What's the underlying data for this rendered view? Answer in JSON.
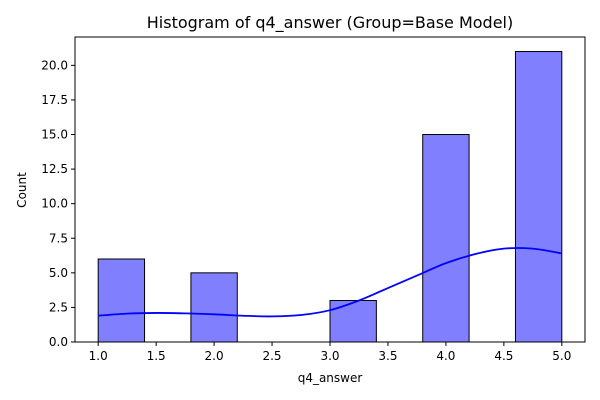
{
  "chart_data": {
    "type": "bar",
    "title": "Histogram of q4_answer (Group=Base Model)",
    "xlabel": "q4_answer",
    "ylabel": "Count",
    "xlim": [
      0.8,
      5.2
    ],
    "ylim": [
      0,
      22.05
    ],
    "grid": false,
    "legend": "none",
    "bar_color": "#8080ff",
    "bar_edge_color": "#000000",
    "kde_color": "#0000ff",
    "x_ticks": [
      1.0,
      1.5,
      2.0,
      2.5,
      3.0,
      3.5,
      4.0,
      4.5,
      5.0
    ],
    "x_tick_labels": [
      "1.0",
      "1.5",
      "2.0",
      "2.5",
      "3.0",
      "3.5",
      "4.0",
      "4.5",
      "5.0"
    ],
    "y_ticks": [
      0.0,
      2.5,
      5.0,
      7.5,
      10.0,
      12.5,
      15.0,
      17.5,
      20.0
    ],
    "y_tick_labels": [
      "0.0",
      "2.5",
      "5.0",
      "7.5",
      "10.0",
      "12.5",
      "15.0",
      "17.5",
      "20.0"
    ],
    "bins": [
      {
        "x0": 1.0,
        "x1": 1.4,
        "count": 6
      },
      {
        "x0": 1.4,
        "x1": 1.8,
        "count": 0
      },
      {
        "x0": 1.8,
        "x1": 2.2,
        "count": 5
      },
      {
        "x0": 2.2,
        "x1": 2.6,
        "count": 0
      },
      {
        "x0": 2.6,
        "x1": 3.0,
        "count": 0
      },
      {
        "x0": 3.0,
        "x1": 3.4,
        "count": 3
      },
      {
        "x0": 3.4,
        "x1": 3.8,
        "count": 0
      },
      {
        "x0": 3.8,
        "x1": 4.2,
        "count": 15
      },
      {
        "x0": 4.2,
        "x1": 4.6,
        "count": 0
      },
      {
        "x0": 4.6,
        "x1": 5.0,
        "count": 21
      }
    ],
    "kde": {
      "x": [
        1.0,
        1.25,
        1.5,
        1.75,
        2.0,
        2.25,
        2.5,
        2.75,
        3.0,
        3.25,
        3.5,
        3.75,
        4.0,
        4.25,
        4.5,
        4.75,
        5.0
      ],
      "y": [
        1.9,
        2.05,
        2.1,
        2.07,
        2.0,
        1.9,
        1.85,
        1.95,
        2.3,
        3.0,
        3.9,
        4.8,
        5.7,
        6.35,
        6.75,
        6.75,
        6.4
      ]
    }
  }
}
